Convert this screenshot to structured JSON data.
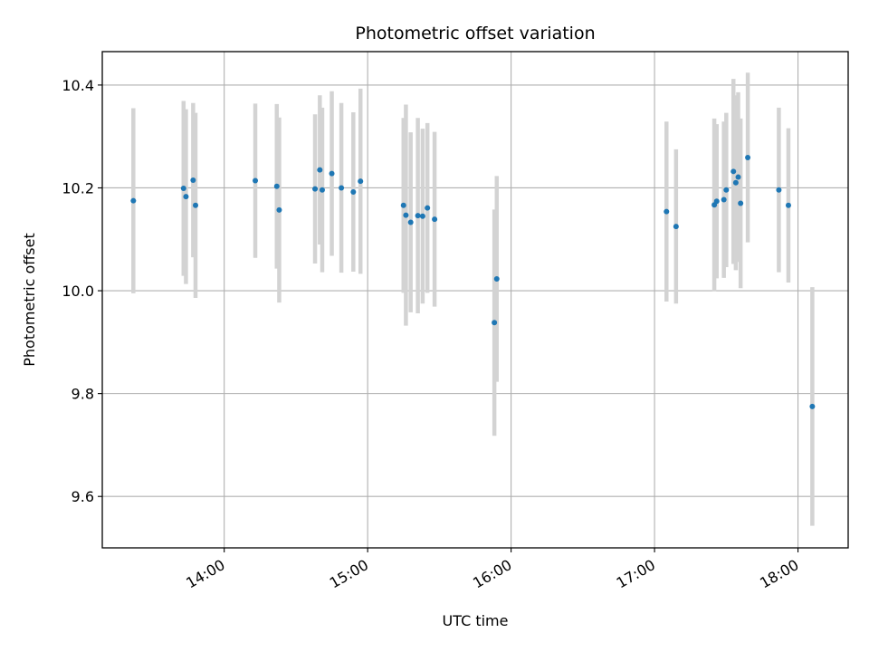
{
  "chart_data": {
    "type": "scatter",
    "title": "Photometric offset variation",
    "xlabel": "UTC time",
    "ylabel": "Photometric offset",
    "x_unit": "UTC clock time (HH:MM)",
    "xlim": [
      "13:09",
      "18:21"
    ],
    "ylim": [
      9.5,
      10.465
    ],
    "x_ticks": [
      "14:00",
      "15:00",
      "16:00",
      "17:00",
      "18:00"
    ],
    "y_ticks": [
      9.6,
      9.8,
      10.0,
      10.2,
      10.4
    ],
    "y_tick_labels": [
      "9.6",
      "9.8",
      "10.0",
      "10.2",
      "10.4"
    ],
    "grid": true,
    "errorbar_color": "#d3d3d3",
    "marker_color": "#1f77b4",
    "points": [
      {
        "x": "13:22",
        "y": 10.175,
        "err": 0.18
      },
      {
        "x": "13:43",
        "y": 10.199,
        "err": 0.17
      },
      {
        "x": "13:44",
        "y": 10.183,
        "err": 0.17
      },
      {
        "x": "13:47",
        "y": 10.215,
        "err": 0.15
      },
      {
        "x": "13:48",
        "y": 10.166,
        "err": 0.18
      },
      {
        "x": "14:13",
        "y": 10.214,
        "err": 0.15
      },
      {
        "x": "14:22",
        "y": 10.203,
        "err": 0.16
      },
      {
        "x": "14:23",
        "y": 10.157,
        "err": 0.18
      },
      {
        "x": "14:38",
        "y": 10.198,
        "err": 0.145
      },
      {
        "x": "14:40",
        "y": 10.235,
        "err": 0.145
      },
      {
        "x": "14:41",
        "y": 10.196,
        "err": 0.16
      },
      {
        "x": "14:45",
        "y": 10.228,
        "err": 0.16
      },
      {
        "x": "14:49",
        "y": 10.2,
        "err": 0.165
      },
      {
        "x": "14:54",
        "y": 10.192,
        "err": 0.155
      },
      {
        "x": "14:57",
        "y": 10.213,
        "err": 0.18
      },
      {
        "x": "15:15",
        "y": 10.166,
        "err": 0.17
      },
      {
        "x": "15:16",
        "y": 10.147,
        "err": 0.215
      },
      {
        "x": "15:18",
        "y": 10.133,
        "err": 0.175
      },
      {
        "x": "15:21",
        "y": 10.146,
        "err": 0.19
      },
      {
        "x": "15:23",
        "y": 10.145,
        "err": 0.17
      },
      {
        "x": "15:25",
        "y": 10.161,
        "err": 0.165
      },
      {
        "x": "15:28",
        "y": 10.139,
        "err": 0.17
      },
      {
        "x": "15:53",
        "y": 9.938,
        "err": 0.22
      },
      {
        "x": "15:54",
        "y": 10.023,
        "err": 0.2
      },
      {
        "x": "17:05",
        "y": 10.154,
        "err": 0.175
      },
      {
        "x": "17:09",
        "y": 10.125,
        "err": 0.15
      },
      {
        "x": "17:25",
        "y": 10.167,
        "err": 0.168
      },
      {
        "x": "17:26",
        "y": 10.174,
        "err": 0.15
      },
      {
        "x": "17:29",
        "y": 10.177,
        "err": 0.152
      },
      {
        "x": "17:30",
        "y": 10.196,
        "err": 0.15
      },
      {
        "x": "17:33",
        "y": 10.232,
        "err": 0.18
      },
      {
        "x": "17:34",
        "y": 10.21,
        "err": 0.17
      },
      {
        "x": "17:35",
        "y": 10.221,
        "err": 0.165
      },
      {
        "x": "17:36",
        "y": 10.17,
        "err": 0.165
      },
      {
        "x": "17:39",
        "y": 10.259,
        "err": 0.165
      },
      {
        "x": "17:52",
        "y": 10.196,
        "err": 0.16
      },
      {
        "x": "17:56",
        "y": 10.166,
        "err": 0.15
      },
      {
        "x": "18:06",
        "y": 9.775,
        "err": 0.232
      }
    ]
  }
}
